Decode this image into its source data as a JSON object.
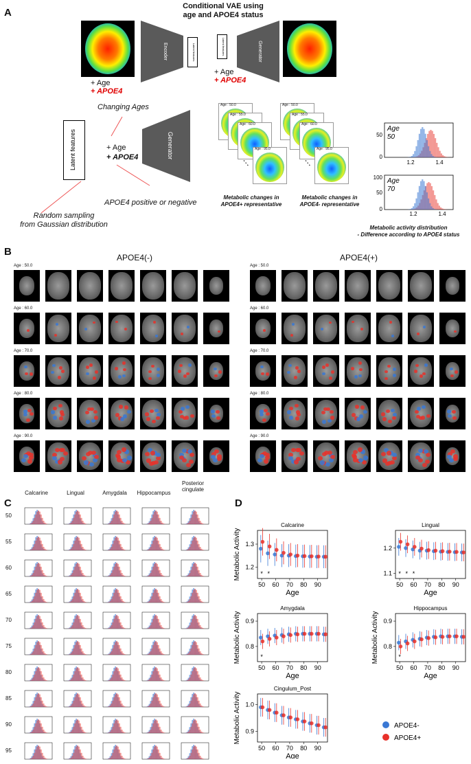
{
  "panels": {
    "a": "A",
    "b": "B",
    "c": "C",
    "d": "D"
  },
  "a": {
    "title_line1": "Conditional VAE using",
    "title_line2": "age and APOE4 status",
    "encoder": "Encoder",
    "latent_small": "Latent features",
    "latent_small2": "Latent features",
    "generator_top": "Generator",
    "plus_age": "+ Age",
    "plus_apoe4": "+ APOE4",
    "plus_age2": "+ Age",
    "plus_apoe4_2": "+ APOE4",
    "changing_ages": "Changing Ages",
    "latent_box": "Latent features",
    "plus_age3": "+ Age",
    "plus_apoe4_3": "+ APOE4",
    "generator_mid": "Generator",
    "apoe4_posneg": "APOE4 positive or negative",
    "random_sampling_1": "Random sampling",
    "random_sampling_2": "from Gaussian distribution",
    "stack_ages": [
      "Age : 50.0",
      "Age : 55.0",
      "Age : 60.0",
      "Age : 95.0"
    ],
    "stack_caption_pos_1": "Metabolic changes in",
    "stack_caption_pos_2": "APOE4+ representative",
    "stack_caption_neg_1": "Metabolic changes in",
    "stack_caption_neg_2": "APOE4- representative",
    "hist_age50_1": "Age",
    "hist_age50_2": "50",
    "hist_age70_1": "Age",
    "hist_age70_2": "70",
    "hist_top_yticks": [
      "50",
      "0"
    ],
    "hist_top_xticks": [
      "1.2",
      "1.4"
    ],
    "hist_bot_yticks": [
      "100",
      "50",
      "0"
    ],
    "hist_bot_xticks": [
      "1.2",
      "1.4"
    ],
    "dist_caption_1": "Metabolic activity distribution",
    "dist_caption_2": "- Difference according to APOE4 status"
  },
  "b": {
    "left_title": "APOE4(-)",
    "right_title": "APOE4(+)",
    "row_ages": [
      "Age : 50.0",
      "Age : 60.0",
      "Age : 70.0",
      "Age : 80.0",
      "Age : 90.0"
    ]
  },
  "c": {
    "columns": [
      "Calcarine",
      "Lingual",
      "Amygdala",
      "Hippocampus",
      "Posterior cingulate"
    ],
    "rows": [
      "50",
      "55",
      "60",
      "65",
      "70",
      "75",
      "80",
      "85",
      "90",
      "95"
    ]
  },
  "colors": {
    "apoe4_neg": "#3a78d4",
    "apoe4_pos": "#e8312a"
  },
  "chart_data": [
    {
      "type": "scatter",
      "title": "Calcarine",
      "xlabel": "Age",
      "ylabel": "Metabolic Activity",
      "x": [
        50,
        55,
        60,
        65,
        70,
        75,
        80,
        85,
        90,
        95
      ],
      "xticks": [
        50,
        60,
        70,
        80,
        90
      ],
      "yticks": [
        1.2,
        1.3
      ],
      "ylim": [
        1.15,
        1.36
      ],
      "series": [
        {
          "name": "APOE4-",
          "values": [
            1.28,
            1.26,
            1.255,
            1.25,
            1.25,
            1.248,
            1.247,
            1.246,
            1.245,
            1.245
          ],
          "err": [
            0.06,
            0.055,
            0.05,
            0.05,
            0.05,
            0.05,
            0.05,
            0.05,
            0.05,
            0.05
          ]
        },
        {
          "name": "APOE4+",
          "values": [
            1.31,
            1.29,
            1.275,
            1.262,
            1.255,
            1.25,
            1.248,
            1.247,
            1.246,
            1.245
          ],
          "err": [
            0.06,
            0.055,
            0.05,
            0.05,
            0.05,
            0.05,
            0.05,
            0.05,
            0.05,
            0.05
          ]
        }
      ],
      "stars": [
        50,
        55
      ]
    },
    {
      "type": "scatter",
      "title": "Lingual",
      "xlabel": "Age",
      "ylabel": "",
      "x": [
        50,
        55,
        60,
        65,
        70,
        75,
        80,
        85,
        90,
        95
      ],
      "xticks": [
        50,
        60,
        70,
        80,
        90
      ],
      "yticks": [
        1.1,
        1.2
      ],
      "ylim": [
        1.08,
        1.27
      ],
      "series": [
        {
          "name": "APOE4-",
          "values": [
            1.205,
            1.2,
            1.195,
            1.19,
            1.19,
            1.188,
            1.186,
            1.185,
            1.184,
            1.183
          ],
          "err": [
            0.035,
            0.035,
            0.035,
            0.035,
            0.035,
            0.035,
            0.035,
            0.035,
            0.035,
            0.035
          ]
        },
        {
          "name": "APOE4+",
          "values": [
            1.225,
            1.215,
            1.205,
            1.198,
            1.192,
            1.19,
            1.188,
            1.186,
            1.185,
            1.183
          ],
          "err": [
            0.035,
            0.035,
            0.035,
            0.035,
            0.035,
            0.035,
            0.035,
            0.035,
            0.035,
            0.035
          ]
        }
      ],
      "stars": [
        50,
        55,
        60
      ]
    },
    {
      "type": "scatter",
      "title": "Amygdala",
      "xlabel": "Age",
      "ylabel": "Metabolic Activity",
      "x": [
        50,
        55,
        60,
        65,
        70,
        75,
        80,
        85,
        90,
        95
      ],
      "xticks": [
        50,
        60,
        70,
        80,
        90
      ],
      "yticks": [
        0.8,
        0.9
      ],
      "ylim": [
        0.74,
        0.93
      ],
      "series": [
        {
          "name": "APOE4-",
          "values": [
            0.835,
            0.84,
            0.843,
            0.845,
            0.848,
            0.85,
            0.85,
            0.85,
            0.85,
            0.848
          ],
          "err": [
            0.03,
            0.03,
            0.03,
            0.03,
            0.03,
            0.03,
            0.03,
            0.03,
            0.03,
            0.03
          ]
        },
        {
          "name": "APOE4+",
          "values": [
            0.82,
            0.83,
            0.835,
            0.84,
            0.845,
            0.848,
            0.85,
            0.85,
            0.85,
            0.848
          ],
          "err": [
            0.03,
            0.03,
            0.03,
            0.03,
            0.03,
            0.03,
            0.03,
            0.03,
            0.03,
            0.03
          ]
        }
      ],
      "stars": [
        50
      ]
    },
    {
      "type": "scatter",
      "title": "Hippocampus",
      "xlabel": "Age",
      "ylabel": "Metabolic Activity",
      "x": [
        50,
        55,
        60,
        65,
        70,
        75,
        80,
        85,
        90,
        95
      ],
      "xticks": [
        50,
        60,
        70,
        80,
        90
      ],
      "yticks": [
        0.8,
        0.9
      ],
      "ylim": [
        0.74,
        0.93
      ],
      "series": [
        {
          "name": "APOE4-",
          "values": [
            0.815,
            0.82,
            0.826,
            0.83,
            0.835,
            0.838,
            0.84,
            0.84,
            0.84,
            0.838
          ],
          "err": [
            0.03,
            0.03,
            0.03,
            0.03,
            0.03,
            0.03,
            0.03,
            0.03,
            0.03,
            0.03
          ]
        },
        {
          "name": "APOE4+",
          "values": [
            0.8,
            0.812,
            0.82,
            0.828,
            0.833,
            0.836,
            0.838,
            0.84,
            0.84,
            0.838
          ],
          "err": [
            0.03,
            0.03,
            0.03,
            0.03,
            0.03,
            0.03,
            0.03,
            0.03,
            0.03,
            0.03
          ]
        }
      ],
      "stars": [
        50
      ]
    },
    {
      "type": "scatter",
      "title": "Cingulum_Post",
      "xlabel": "Age",
      "ylabel": "Metabolic Activity",
      "x": [
        50,
        55,
        60,
        65,
        70,
        75,
        80,
        85,
        90,
        95
      ],
      "xticks": [
        50,
        60,
        70,
        80,
        90
      ],
      "yticks": [
        0.9,
        1.0
      ],
      "ylim": [
        0.86,
        1.04
      ],
      "series": [
        {
          "name": "APOE4-",
          "values": [
            0.99,
            0.98,
            0.97,
            0.96,
            0.952,
            0.945,
            0.937,
            0.93,
            0.923,
            0.915
          ],
          "err": [
            0.035,
            0.035,
            0.035,
            0.035,
            0.035,
            0.035,
            0.035,
            0.035,
            0.035,
            0.035
          ]
        },
        {
          "name": "APOE4+",
          "values": [
            0.99,
            0.98,
            0.97,
            0.96,
            0.952,
            0.945,
            0.937,
            0.93,
            0.923,
            0.915
          ],
          "err": [
            0.035,
            0.035,
            0.035,
            0.035,
            0.035,
            0.035,
            0.035,
            0.035,
            0.035,
            0.035
          ]
        }
      ],
      "stars": []
    }
  ],
  "legend": {
    "neg": "APOE4-",
    "pos": "APOE4+"
  },
  "star_symbol": "*"
}
